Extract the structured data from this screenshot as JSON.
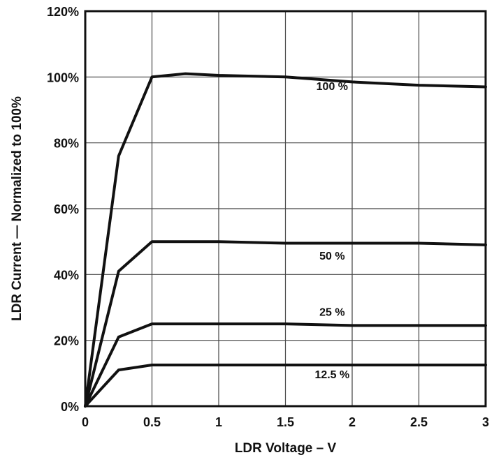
{
  "chart_data": {
    "type": "line",
    "title": "",
    "xlabel": "LDR Voltage – V",
    "ylabel": "LDR Current — Normalized to 100%",
    "xlim": [
      0,
      3
    ],
    "ylim": [
      0,
      120
    ],
    "grid": true,
    "x_ticks": [
      0,
      0.5,
      1,
      1.5,
      2,
      2.5,
      3
    ],
    "x_tick_labels": [
      "0",
      "0.5",
      "1",
      "1.5",
      "2",
      "2.5",
      "3"
    ],
    "y_ticks": [
      0,
      20,
      40,
      60,
      80,
      100,
      120
    ],
    "y_tick_labels": [
      "0%",
      "20%",
      "40%",
      "60%",
      "80%",
      "100%",
      "120%"
    ],
    "series": [
      {
        "name": "100 %",
        "label_at": [
          1.85,
          96
        ],
        "points": [
          [
            0,
            0
          ],
          [
            0.25,
            76
          ],
          [
            0.5,
            100
          ],
          [
            0.75,
            101
          ],
          [
            1,
            100.5
          ],
          [
            1.5,
            100
          ],
          [
            2,
            98.5
          ],
          [
            2.5,
            97.5
          ],
          [
            3,
            97
          ]
        ]
      },
      {
        "name": "50 %",
        "label_at": [
          1.85,
          44.5
        ],
        "points": [
          [
            0,
            0
          ],
          [
            0.25,
            41
          ],
          [
            0.5,
            50
          ],
          [
            1,
            50
          ],
          [
            1.5,
            49.5
          ],
          [
            2,
            49.5
          ],
          [
            2.5,
            49.5
          ],
          [
            3,
            49
          ]
        ]
      },
      {
        "name": "25 %",
        "label_at": [
          1.85,
          27.5
        ],
        "points": [
          [
            0,
            0
          ],
          [
            0.25,
            21
          ],
          [
            0.5,
            25
          ],
          [
            1,
            25
          ],
          [
            1.5,
            25
          ],
          [
            2,
            24.5
          ],
          [
            2.5,
            24.5
          ],
          [
            3,
            24.5
          ]
        ]
      },
      {
        "name": "12.5 %",
        "label_at": [
          1.85,
          8.5
        ],
        "points": [
          [
            0,
            0
          ],
          [
            0.25,
            11
          ],
          [
            0.5,
            12.5
          ],
          [
            1,
            12.5
          ],
          [
            1.5,
            12.5
          ],
          [
            2,
            12.5
          ],
          [
            2.5,
            12.5
          ],
          [
            3,
            12.5
          ]
        ]
      }
    ]
  }
}
